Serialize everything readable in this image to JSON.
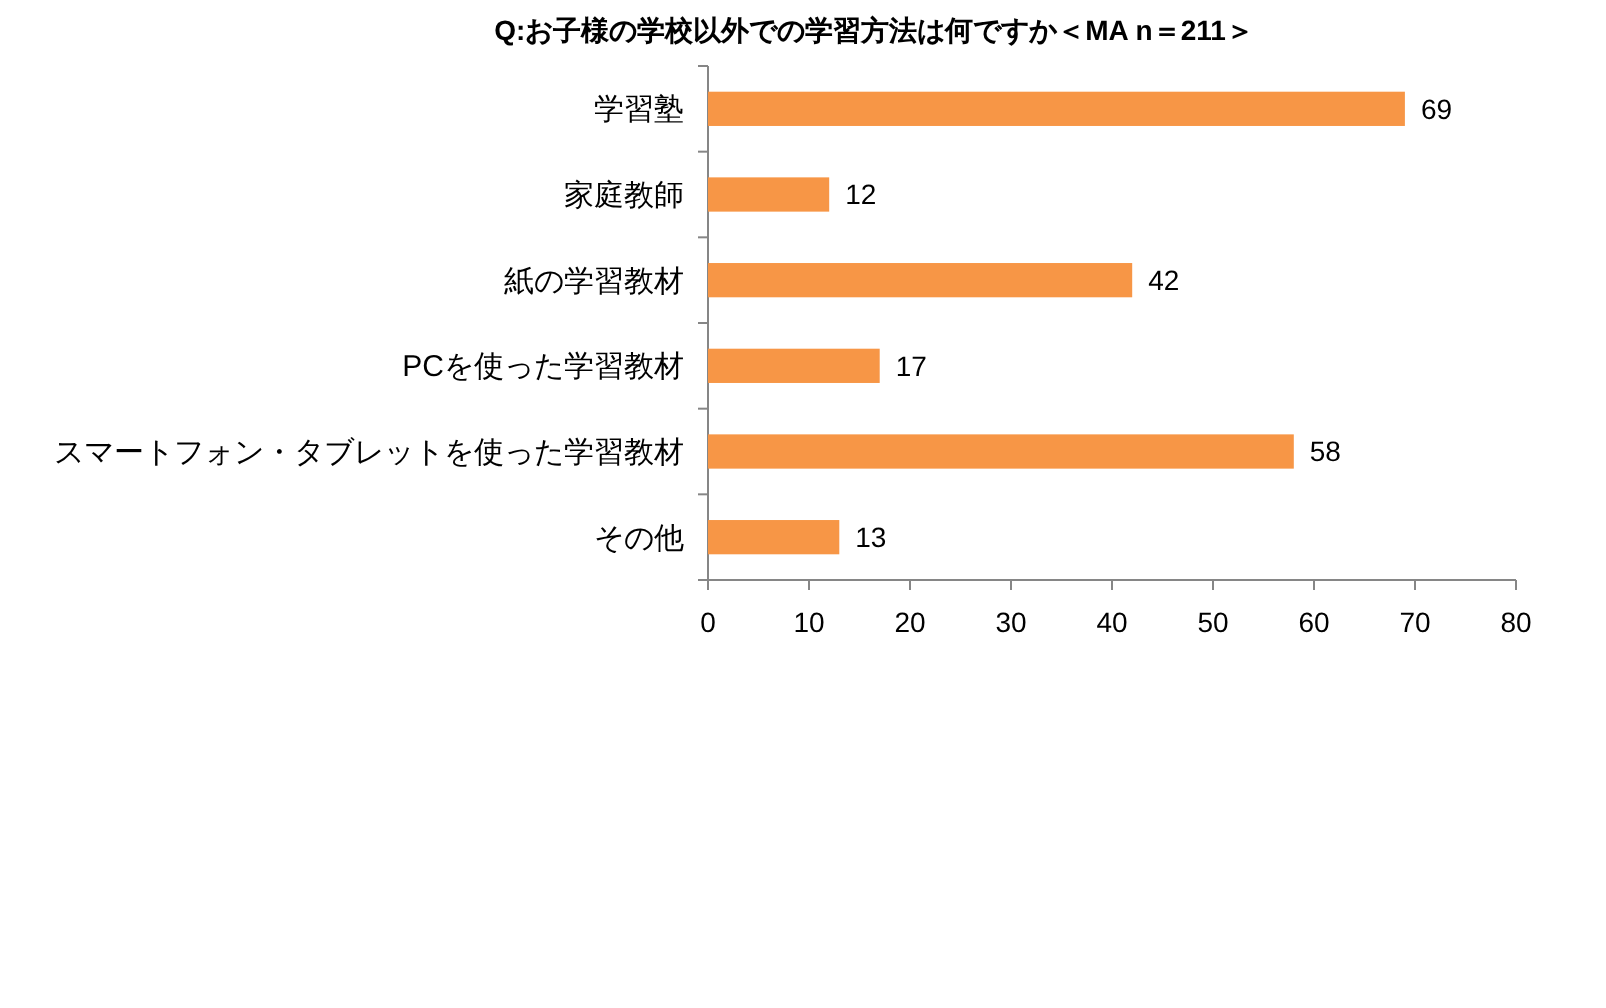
{
  "chart_data": {
    "type": "bar",
    "orientation": "horizontal",
    "title": "Q:お子様の学校以外での学習方法は何ですか＜MA n＝211＞",
    "categories": [
      "学習塾",
      "家庭教師",
      "紙の学習教材",
      "PCを使った学習教材",
      "スマートフォン・タブレットを使った学習教材",
      "その他"
    ],
    "values": [
      69,
      12,
      42,
      17,
      58,
      13
    ],
    "color": "#f79646",
    "xlim": [
      0,
      80
    ],
    "xticks": [
      0,
      10,
      20,
      30,
      40,
      50,
      60,
      70,
      80
    ],
    "data_labels": true
  }
}
